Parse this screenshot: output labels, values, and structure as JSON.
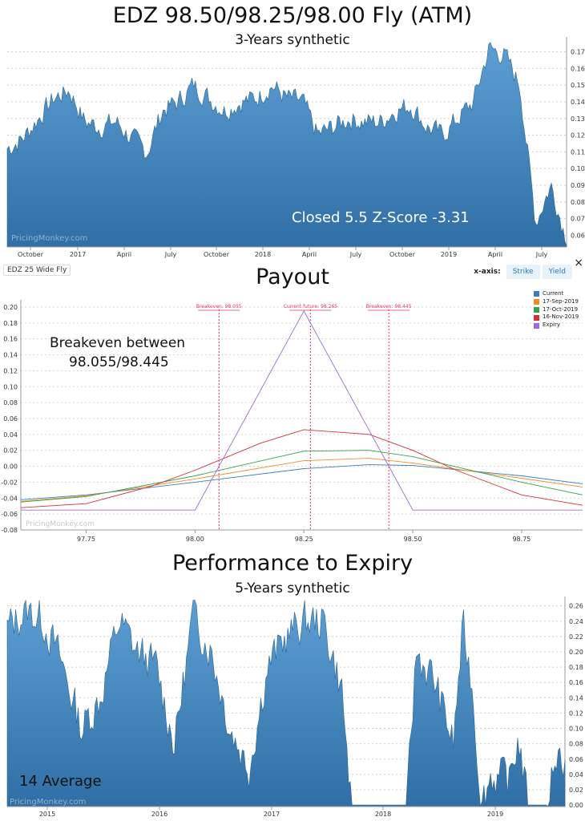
{
  "top_chart": {
    "title": "EDZ 98.50/98.25/98.00 Fly (ATM)",
    "subtitle": "3-Years synthetic",
    "annotation": "Closed 5.5 Z-Score -3.31",
    "watermark": "PricingMonkey.com"
  },
  "payout_chart": {
    "tag": "EDZ 25 Wide Fly",
    "title": "Payout",
    "annotation_line1": "Breakeven between",
    "annotation_line2": "98.055/98.445",
    "watermark": "PricingMonkey.com",
    "xaxis_label": "x-axis:",
    "xaxis_strike": "Strike",
    "xaxis_yield": "Yield",
    "close_icon": "×",
    "markers": [
      "Breakeven: 98.055",
      "Current future: 98.265",
      "Breakeven: 98.445"
    ]
  },
  "perf_chart": {
    "title": "Performance to Expiry",
    "subtitle": "5-Years synthetic",
    "annotation": "14 Average",
    "watermark": "PricingMonkey.com"
  },
  "chart_data": [
    {
      "type": "area",
      "title": "EDZ 98.50/98.25/98.00 Fly (ATM)",
      "subtitle": "3-Years synthetic",
      "color": "#2f6fa5",
      "x_tick_labels": [
        "October",
        "2017",
        "April",
        "July",
        "October",
        "2018",
        "April",
        "July",
        "October",
        "2019",
        "April",
        "July"
      ],
      "y_ticks": [
        0.06,
        0.07,
        0.08,
        0.09,
        0.1,
        0.11,
        0.12,
        0.13,
        0.14,
        0.15,
        0.16,
        0.17
      ],
      "ylim": [
        0.053,
        0.177
      ],
      "x_start": "2016-08",
      "x_end": "2019-08",
      "series": [
        {
          "x": [
            "2016-08",
            "2016-09",
            "2016-10",
            "2016-11",
            "2016-12",
            "2017-01",
            "2017-02",
            "2017-03",
            "2017-04",
            "2017-05",
            "2017-06",
            "2017-07",
            "2017-08",
            "2017-09",
            "2017-10",
            "2017-11",
            "2017-12",
            "2018-01",
            "2018-02",
            "2018-03",
            "2018-04",
            "2018-05",
            "2018-06",
            "2018-07",
            "2018-08",
            "2018-09",
            "2018-10",
            "2018-11",
            "2018-12",
            "2019-01",
            "2019-02",
            "2019-03",
            "2019-04",
            "2019-05",
            "2019-06",
            "2019-07",
            "2019-08"
          ],
          "values": [
            0.112,
            0.118,
            0.13,
            0.142,
            0.147,
            0.128,
            0.125,
            0.128,
            0.118,
            0.11,
            0.135,
            0.14,
            0.15,
            0.142,
            0.135,
            0.14,
            0.142,
            0.15,
            0.142,
            0.14,
            0.12,
            0.125,
            0.13,
            0.128,
            0.128,
            0.135,
            0.138,
            0.125,
            0.12,
            0.13,
            0.14,
            0.172,
            0.168,
            0.15,
            0.068,
            0.09,
            0.058
          ]
        }
      ]
    },
    {
      "type": "line",
      "title": "Payout",
      "xlim": [
        97.6,
        98.89
      ],
      "ylim": [
        -0.08,
        0.205
      ],
      "x_ticks": [
        97.75,
        98.0,
        98.25,
        98.5,
        98.75
      ],
      "x_tick_labels": [
        "97.75",
        "98.00",
        "98.25",
        "98.50",
        "98.75"
      ],
      "y_ticks": [
        -0.08,
        -0.06,
        -0.04,
        -0.02,
        0,
        0.02,
        0.04,
        0.06,
        0.08,
        0.1,
        0.12,
        0.14,
        0.16,
        0.18,
        0.2
      ],
      "y_tick_labels": [
        "-0.08",
        "-0.06",
        "-0.04",
        "-0.02",
        "0.00",
        "0.02",
        "0.04",
        "0.06",
        "0.08",
        "0.10",
        "0.12",
        "0.14",
        "0.16",
        "0.18",
        "0.20"
      ],
      "vlines": [
        98.055,
        98.265,
        98.445
      ],
      "vline_color": "#e2366a",
      "legend_position": "top-right",
      "series": [
        {
          "name": "Current",
          "color": "#3a7dbd",
          "x": [
            97.6,
            97.75,
            98.0,
            98.25,
            98.4,
            98.5,
            98.75,
            98.89
          ],
          "values": [
            -0.042,
            -0.036,
            -0.02,
            -0.003,
            0.002,
            0.001,
            -0.012,
            -0.022
          ]
        },
        {
          "name": "17-Sep-2019",
          "color": "#f58a25",
          "x": [
            97.6,
            97.75,
            98.0,
            98.25,
            98.4,
            98.5,
            98.75,
            98.89
          ],
          "values": [
            -0.044,
            -0.037,
            -0.016,
            0.007,
            0.01,
            0.004,
            -0.015,
            -0.026
          ]
        },
        {
          "name": "17-Oct-2019",
          "color": "#37a04a",
          "x": [
            97.6,
            97.75,
            98.0,
            98.25,
            98.4,
            98.5,
            98.75,
            98.89
          ],
          "values": [
            -0.045,
            -0.038,
            -0.012,
            0.019,
            0.02,
            0.012,
            -0.02,
            -0.036
          ]
        },
        {
          "name": "16-Nov-2019",
          "color": "#d33333",
          "x": [
            97.6,
            97.75,
            97.9,
            98.0,
            98.15,
            98.25,
            98.4,
            98.5,
            98.6,
            98.75,
            98.89
          ],
          "values": [
            -0.052,
            -0.047,
            -0.025,
            -0.005,
            0.029,
            0.046,
            0.04,
            0.02,
            -0.005,
            -0.036,
            -0.049
          ]
        },
        {
          "name": "Expiry",
          "color": "#9b6ad4",
          "x": [
            97.6,
            98.0,
            98.25,
            98.5,
            98.89
          ],
          "values": [
            -0.055,
            -0.055,
            0.195,
            -0.055,
            -0.055
          ]
        }
      ]
    },
    {
      "type": "area",
      "title": "Performance to Expiry",
      "subtitle": "5-Years synthetic",
      "color": "#2f6fa5",
      "x_tick_labels": [
        "2015",
        "2016",
        "2017",
        "2018",
        "2019"
      ],
      "y_ticks": [
        0,
        0.02,
        0.04,
        0.06,
        0.08,
        0.1,
        0.12,
        0.14,
        0.16,
        0.18,
        0.2,
        0.22,
        0.24,
        0.26
      ],
      "y_tick_labels": [
        "0.00",
        "0.02",
        "0.04",
        "0.06",
        "0.08",
        "0.10",
        "0.12",
        "0.14",
        "0.16",
        "0.18",
        "0.20",
        "0.22",
        "0.24",
        "0.26"
      ],
      "ylim": [
        -0.002,
        0.268
      ],
      "x_start": "2014-08",
      "x_end": "2019-08",
      "series": [
        {
          "x": [
            "2014-08",
            "2014-10",
            "2014-12",
            "2015-02",
            "2015-04",
            "2015-06",
            "2015-08",
            "2015-10",
            "2015-12",
            "2016-02",
            "2016-04",
            "2016-06",
            "2016-08",
            "2016-10",
            "2016-12",
            "2017-02",
            "2017-04",
            "2017-06",
            "2017-08",
            "2017-09",
            "2017-10",
            "2017-12",
            "2018-02",
            "2018-03",
            "2018-04",
            "2018-06",
            "2018-08",
            "2018-09",
            "2018-10",
            "2018-11",
            "2018-12",
            "2019-02",
            "2019-03",
            "2019-04",
            "2019-05",
            "2019-06",
            "2019-07",
            "2019-08"
          ],
          "values": [
            0.23,
            0.255,
            0.24,
            0.18,
            0.1,
            0.14,
            0.24,
            0.2,
            0.18,
            0.08,
            0.25,
            0.2,
            0.1,
            0.05,
            0.18,
            0.22,
            0.24,
            0.24,
            0.15,
            0.0,
            0.0,
            0.0,
            0.0,
            0.0,
            0.2,
            0.16,
            0.08,
            0.23,
            0.16,
            0.0,
            0.04,
            0.03,
            0.09,
            0.0,
            0.0,
            0.0,
            0.07,
            0.06
          ]
        }
      ]
    }
  ]
}
